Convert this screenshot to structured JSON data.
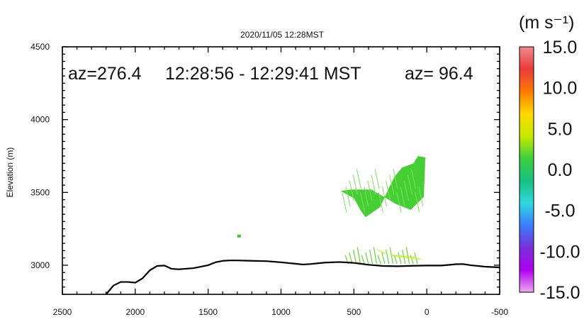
{
  "chart_data": {
    "type": "heatmap",
    "title": "2020/11/05 12:28MST",
    "annotation": {
      "left": "az=276.4",
      "middle": "12:28:56 - 12:29:41 MST",
      "right": "az= 96.4"
    },
    "xlabel": "",
    "ylabel": "Elevation (m)",
    "xlim": [
      2500,
      -500
    ],
    "ylim": [
      2800,
      4500
    ],
    "x_ticks": [
      2500,
      2000,
      1500,
      1000,
      500,
      0,
      -500
    ],
    "x_tick_labels": [
      "2500",
      "2000",
      "1500",
      "1000",
      "500",
      "0",
      "-500"
    ],
    "y_ticks": [
      3000,
      3500,
      4000,
      4500
    ],
    "y_tick_labels": [
      "3000",
      "3500",
      "4000",
      "4500"
    ],
    "grid": false,
    "colorbar": {
      "label": "(m s⁻¹)",
      "range": [
        -15,
        15
      ],
      "tick_labels": [
        "15.0",
        "10.0",
        "5.0",
        "0.0",
        "-5.0",
        "-10.0",
        "-15.0"
      ],
      "colors": [
        "#f08a8a",
        "#ea3a3a",
        "#ff7a00",
        "#ffd800",
        "#c6ea00",
        "#3cd03c",
        "#18c080",
        "#30d8e0",
        "#3a7cff",
        "#7a30d8",
        "#b000f0",
        "#f0a8f0"
      ]
    },
    "terrain": {
      "x": [
        2200,
        2150,
        2100,
        2050,
        2000,
        1950,
        1900,
        1850,
        1800,
        1750,
        1700,
        1600,
        1500,
        1450,
        1400,
        1350,
        1300,
        1200,
        1100,
        1000,
        900,
        850,
        800,
        700,
        600,
        500,
        400,
        300,
        200,
        100,
        0,
        -100,
        -150,
        -200,
        -250,
        -300,
        -400,
        -500
      ],
      "y": [
        2800,
        2860,
        2885,
        2885,
        2880,
        2910,
        2965,
        2995,
        2998,
        2975,
        2972,
        2980,
        3000,
        3020,
        3030,
        3033,
        3033,
        3030,
        3028,
        3020,
        3010,
        3005,
        3008,
        3018,
        3022,
        3016,
        3003,
        2995,
        2993,
        2996,
        2998,
        2998,
        3002,
        3007,
        3008,
        3000,
        2990,
        2985
      ]
    },
    "velocity_region": {
      "main_polygon_x": [
        590,
        500,
        450,
        420,
        320,
        260,
        220,
        170,
        90,
        60,
        10,
        20,
        110,
        210,
        380,
        520,
        590
      ],
      "main_polygon_y": [
        3510,
        3460,
        3370,
        3330,
        3400,
        3530,
        3610,
        3670,
        3700,
        3750,
        3740,
        3470,
        3380,
        3420,
        3520,
        3520,
        3510
      ],
      "value_ms": 0.0
    }
  }
}
